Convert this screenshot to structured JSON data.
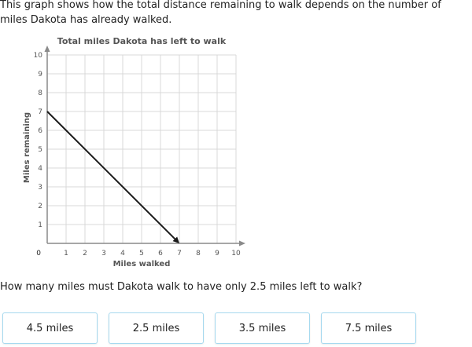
{
  "intro_text": "This graph shows how the total distance remaining to walk depends on the number of miles Dakota has already walked.",
  "question_text": "How many miles must Dakota walk to have only 2.5 miles left to walk?",
  "choices": [
    "4.5 miles",
    "2.5 miles",
    "3.5 miles",
    "7.5 miles"
  ],
  "colors": {
    "grid": "#d9d9d9",
    "axis": "#8a8a8a",
    "line": "#1a1a1a",
    "choice_border": "#a6d9ef"
  },
  "chart_data": {
    "type": "line",
    "title": "Total miles Dakota has left to walk",
    "xlabel": "Miles walked",
    "ylabel": "Miles remaining",
    "xlim": [
      0,
      10
    ],
    "ylim": [
      0,
      10
    ],
    "x_ticks": [
      0,
      1,
      2,
      3,
      4,
      5,
      6,
      7,
      8,
      9,
      10
    ],
    "y_ticks": [
      1,
      2,
      3,
      4,
      5,
      6,
      7,
      8,
      9,
      10
    ],
    "origin_label": "0",
    "grid": true,
    "series": [
      {
        "x": [
          0,
          7
        ],
        "y": [
          7,
          0
        ],
        "end_arrow": true
      }
    ]
  }
}
